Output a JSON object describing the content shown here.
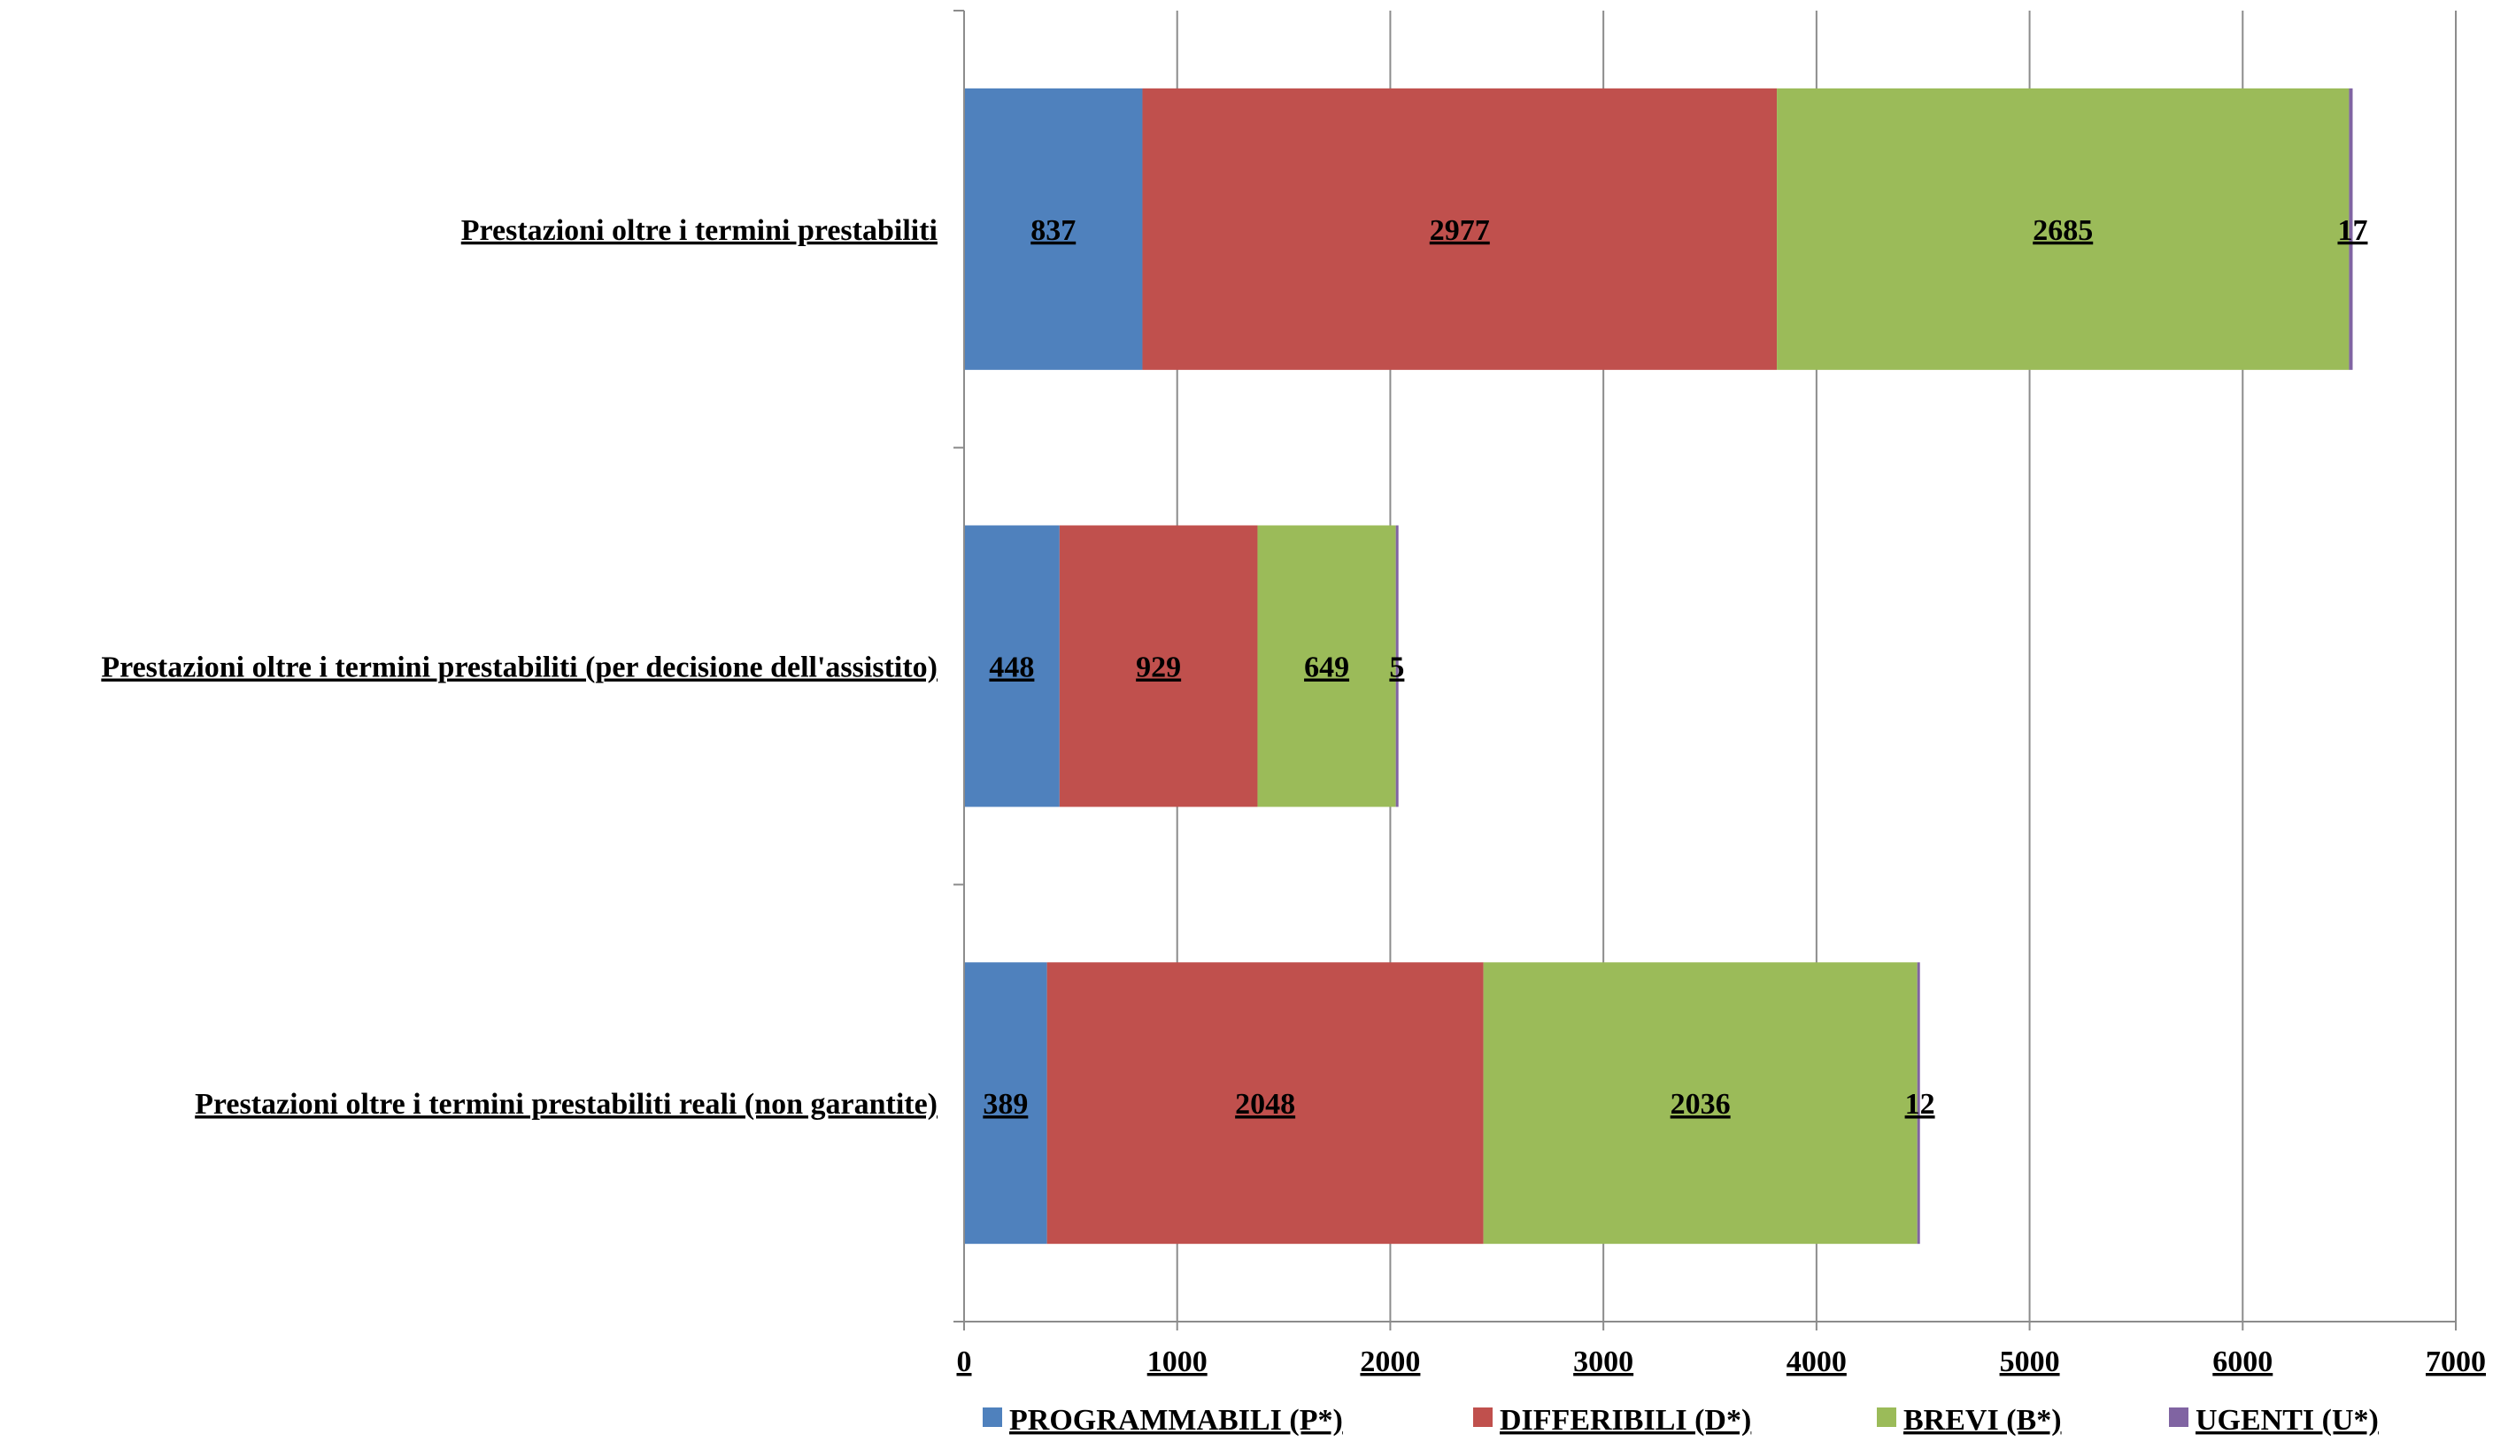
{
  "chart_data": {
    "type": "bar",
    "orientation": "horizontal",
    "stacked": true,
    "categories": [
      "Prestazioni oltre i termini prestabiliti",
      "Prestazioni oltre i termini prestabiliti (per decisione dell'assistito)",
      "Prestazioni oltre i termini prestabiliti reali (non garantite)"
    ],
    "series": [
      {
        "name": "PROGRAMMABILI (P*)",
        "color": "#4F81BD",
        "values": [
          837,
          448,
          389
        ]
      },
      {
        "name": "DIFFERIBILI (D*)",
        "color": "#C0504D",
        "values": [
          2977,
          929,
          2048
        ]
      },
      {
        "name": "BREVI (B*)",
        "color": "#9BBB59",
        "values": [
          2685,
          649,
          2036
        ]
      },
      {
        "name": "UGENTI (U*)",
        "color": "#8064A2",
        "values": [
          17,
          5,
          12
        ]
      }
    ],
    "xlim": [
      0,
      7000
    ],
    "xticks": [
      "0",
      "1000",
      "2000",
      "3000",
      "4000",
      "5000",
      "6000",
      "7000"
    ],
    "xlabel": "",
    "ylabel": "",
    "grid": "vertical",
    "legend_position": "bottom"
  }
}
